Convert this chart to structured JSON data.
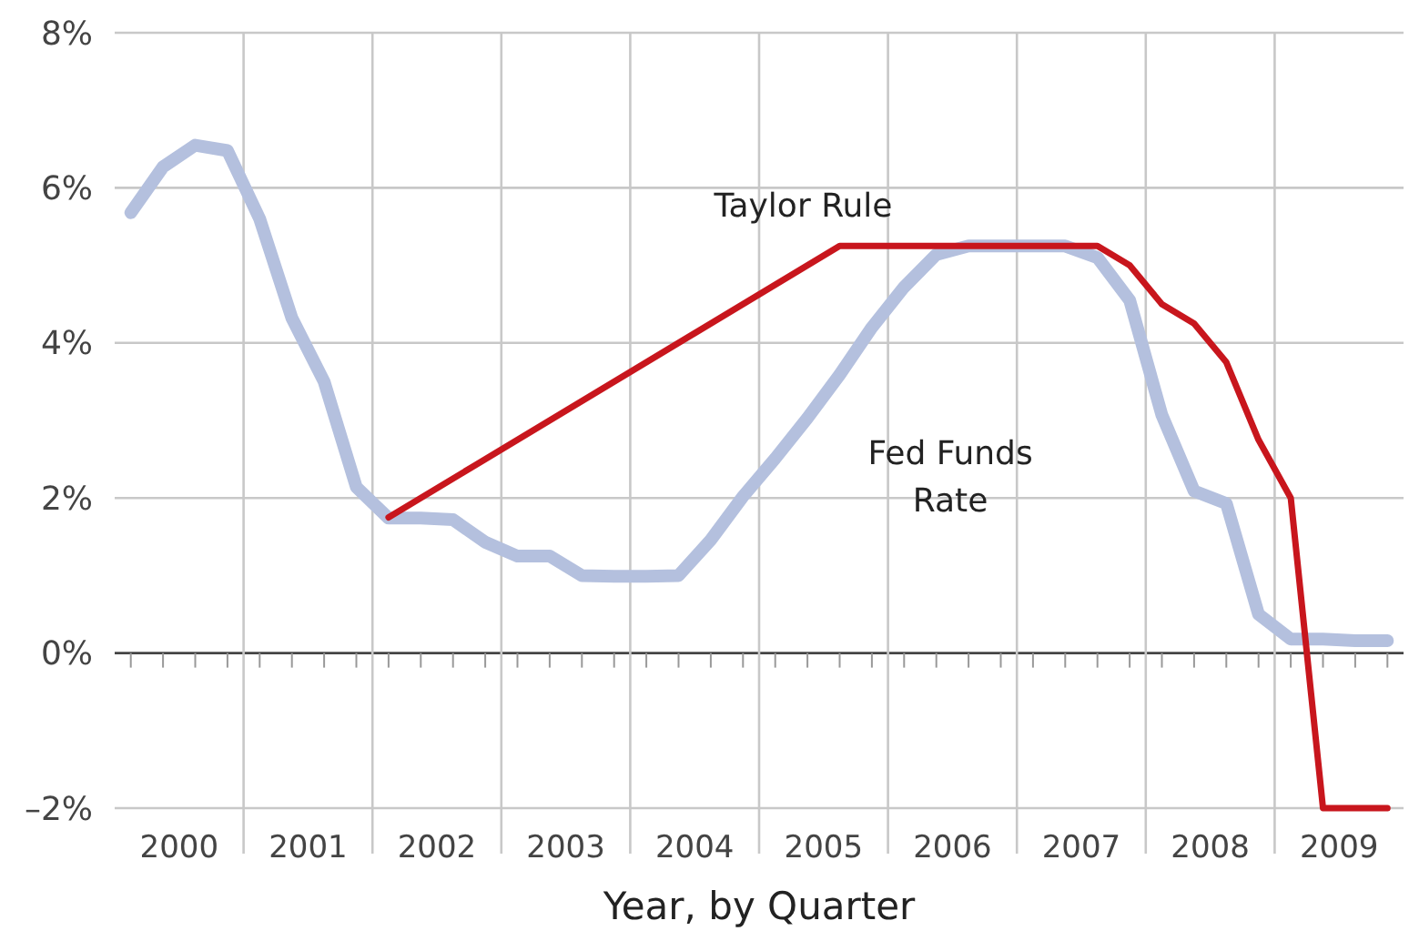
{
  "chart_data": {
    "type": "line",
    "xlabel": "Year, by Quarter",
    "x": [
      2000.125,
      2000.375,
      2000.625,
      2000.875,
      2001.125,
      2001.375,
      2001.625,
      2001.875,
      2002.125,
      2002.375,
      2002.625,
      2002.875,
      2003.125,
      2003.375,
      2003.625,
      2003.875,
      2004.125,
      2004.375,
      2004.625,
      2004.875,
      2005.125,
      2005.375,
      2005.625,
      2005.875,
      2006.125,
      2006.375,
      2006.625,
      2006.875,
      2007.125,
      2007.375,
      2007.625,
      2007.875,
      2008.125,
      2008.375,
      2008.625,
      2008.875,
      2009.125,
      2009.375,
      2009.625,
      2009.875
    ],
    "series": [
      {
        "name": "Fed Funds Rate",
        "color": "#b4c0de",
        "values": [
          5.68,
          6.27,
          6.55,
          6.48,
          5.6,
          4.32,
          3.5,
          2.14,
          1.74,
          1.74,
          1.72,
          1.43,
          1.25,
          1.25,
          1.0,
          0.99,
          0.99,
          1.0,
          1.46,
          2.02,
          2.51,
          3.03,
          3.59,
          4.2,
          4.72,
          5.14,
          5.25,
          5.25,
          5.25,
          5.25,
          5.1,
          4.55,
          3.07,
          2.09,
          1.93,
          0.5,
          0.18,
          0.18,
          0.16,
          0.16
        ]
      },
      {
        "name": "Taylor Rule",
        "color": "#c8161d",
        "x": [
          2002.125,
          2005.625,
          2007.625,
          2007.875,
          2008.125,
          2008.375,
          2008.625,
          2008.875,
          2009.125,
          2009.375,
          2009.875
        ],
        "values": [
          1.75,
          5.25,
          5.25,
          5.0,
          4.5,
          4.25,
          3.75,
          2.75,
          2.0,
          -2.0,
          -2.0
        ]
      }
    ],
    "xlim": [
      2000,
      2010
    ],
    "xticks": [
      {
        "value": 2001,
        "label": null
      },
      {
        "value": 2002,
        "label": null
      },
      {
        "value": 2003,
        "label": null
      },
      {
        "value": 2004,
        "label": null
      },
      {
        "value": 2005,
        "label": null
      },
      {
        "value": 2006,
        "label": null
      },
      {
        "value": 2007,
        "label": null
      },
      {
        "value": 2008,
        "label": null
      },
      {
        "value": 2009,
        "label": null
      },
      {
        "value": 2000.5,
        "label": "2000"
      },
      {
        "value": 2001.5,
        "label": "2001"
      },
      {
        "value": 2002.5,
        "label": "2002"
      },
      {
        "value": 2003.5,
        "label": "2003"
      },
      {
        "value": 2004.5,
        "label": "2004"
      },
      {
        "value": 2005.5,
        "label": "2005"
      },
      {
        "value": 2006.5,
        "label": "2006"
      },
      {
        "value": 2007.5,
        "label": "2007"
      },
      {
        "value": 2008.5,
        "label": "2008"
      },
      {
        "value": 2009.5,
        "label": "2009"
      }
    ],
    "ylim": [
      -2,
      8
    ],
    "yticks": [
      {
        "value": -2,
        "label": "–2%"
      },
      {
        "value": 0,
        "label": "0%"
      },
      {
        "value": 2,
        "label": "2%"
      },
      {
        "value": 4,
        "label": "4%"
      },
      {
        "value": 6,
        "label": "6%"
      },
      {
        "value": 8,
        "label": "8%"
      }
    ],
    "grid": true,
    "marker": "none",
    "line_style": "solid"
  }
}
